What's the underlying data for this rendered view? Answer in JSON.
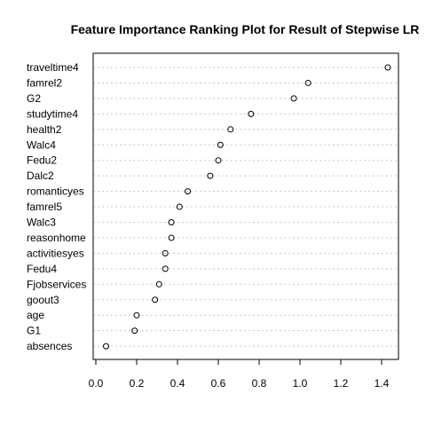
{
  "chart_data": {
    "type": "scatter",
    "title": "Feature Importance Ranking Plot for Result of Stepwise LR",
    "xlabel": "",
    "ylabel": "",
    "xlim": [
      0.0,
      1.45
    ],
    "xticks": [
      0.0,
      0.2,
      0.4,
      0.6,
      0.8,
      1.0,
      1.2,
      1.4
    ],
    "xtick_labels": [
      "0.0",
      "0.2",
      "0.4",
      "0.6",
      "0.8",
      "1.0",
      "1.2",
      "1.4"
    ],
    "grid": "horizontal dotted",
    "marker": "open circle",
    "categories": [
      "traveltime4",
      "famrel2",
      "G2",
      "studytime4",
      "health2",
      "Walc4",
      "Fedu2",
      "Dalc2",
      "romanticyes",
      "famrel5",
      "Walc3",
      "reasonhome",
      "activitiesyes",
      "Fedu4",
      "Fjobservices",
      "goout3",
      "age",
      "G1",
      "absences"
    ],
    "values": [
      1.43,
      1.04,
      0.97,
      0.76,
      0.66,
      0.61,
      0.6,
      0.56,
      0.45,
      0.41,
      0.37,
      0.37,
      0.34,
      0.34,
      0.31,
      0.29,
      0.2,
      0.19,
      0.05
    ]
  }
}
